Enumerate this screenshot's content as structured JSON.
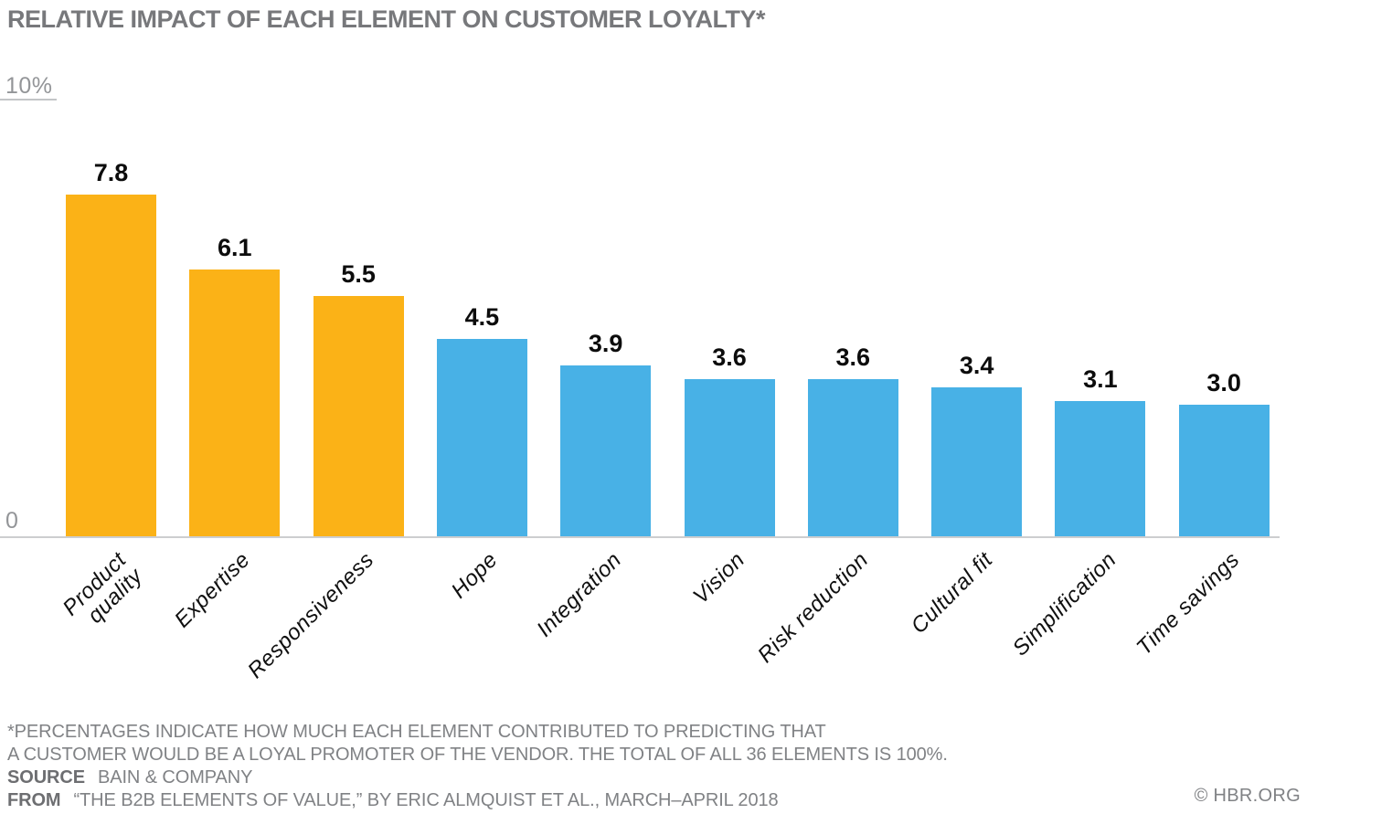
{
  "title": "RELATIVE IMPACT OF EACH ELEMENT ON CUSTOMER LOYALTY*",
  "y_axis": {
    "top_label": "10%",
    "bottom_label": "0"
  },
  "chart_data": {
    "type": "bar",
    "title": "RELATIVE IMPACT OF EACH ELEMENT ON CUSTOMER LOYALTY*",
    "categories": [
      "Product quality",
      "Expertise",
      "Responsiveness",
      "Hope",
      "Integration",
      "Vision",
      "Risk reduction",
      "Cultural fit",
      "Simplification",
      "Time savings"
    ],
    "categories_display": [
      "Product\nquality",
      "Expertise",
      "Responsiveness",
      "Hope",
      "Integration",
      "Vision",
      "Risk reduction",
      "Cultural fit",
      "Simplification",
      "Time savings"
    ],
    "values": [
      7.8,
      6.1,
      5.5,
      4.5,
      3.9,
      3.6,
      3.6,
      3.4,
      3.1,
      3.0
    ],
    "value_labels": [
      "7.8",
      "6.1",
      "5.5",
      "4.5",
      "3.9",
      "3.6",
      "3.6",
      "3.4",
      "3.1",
      "3.0"
    ],
    "bar_colors": [
      "#FBB217",
      "#FBB217",
      "#FBB217",
      "#48B1E6",
      "#48B1E6",
      "#48B1E6",
      "#48B1E6",
      "#48B1E6",
      "#48B1E6",
      "#48B1E6"
    ],
    "highlight_color": "#FBB217",
    "default_color": "#48B1E6",
    "xlabel": "",
    "ylabel": "",
    "ylim": [
      0,
      10
    ],
    "y_tick_labels": [
      "0",
      "10%"
    ],
    "grid": false,
    "legend": false,
    "units": "percent"
  },
  "footnote": {
    "line1": "*PERCENTAGES INDICATE HOW MUCH EACH ELEMENT CONTRIBUTED TO PREDICTING THAT",
    "line2": "A CUSTOMER WOULD BE A LOYAL PROMOTER OF THE VENDOR. THE TOTAL OF ALL 36 ELEMENTS IS 100%."
  },
  "source": {
    "label": "SOURCE",
    "text": "BAIN & COMPANY"
  },
  "attribution": {
    "label": "FROM",
    "text": "“THE B2B ELEMENTS OF VALUE,” BY ERIC ALMQUIST ET AL., MARCH–APRIL 2018"
  },
  "copyright": "© HBR.ORG"
}
